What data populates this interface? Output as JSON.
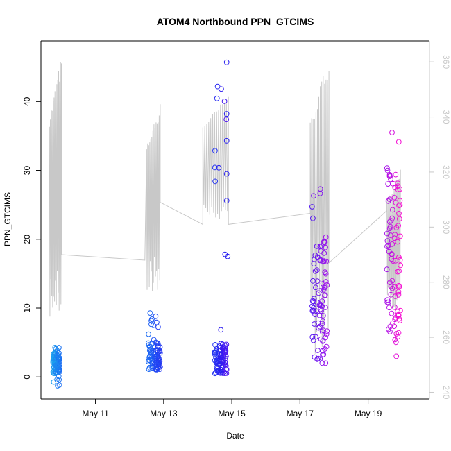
{
  "chart_data": {
    "type": "scatter",
    "title": "ATOM4 Northbound PPN_GTCIMS",
    "xlabel": "Date",
    "ylabel": "PPN_GTCIMS",
    "y2label": "",
    "xlim": [
      9.4,
      20.8
    ],
    "ylim": [
      -3.2,
      48.8
    ],
    "y2lim": [
      237.6,
      367.6
    ],
    "x_ticks": [
      {
        "value": 11,
        "label": "May 11"
      },
      {
        "value": 13,
        "label": "May 13"
      },
      {
        "value": 15,
        "label": "May 15"
      },
      {
        "value": 17,
        "label": "May 17"
      },
      {
        "value": 19,
        "label": "May 19"
      }
    ],
    "y_ticks": [
      0,
      10,
      20,
      30,
      40
    ],
    "y2_ticks": [
      240,
      260,
      280,
      300,
      320,
      340,
      360
    ],
    "colors": {
      "axis": "#000000",
      "right_axis": "#c8c8c8",
      "line": "#c8c8c8"
    },
    "series": [
      {
        "axis": "left",
        "marker": "open-circle",
        "color_by_time": [
          "#1aa3ee",
          "#1d5ff4",
          "#2a1af0",
          "#8f14ef",
          "#ff10d0"
        ],
        "clusters": [
          {
            "x_range": [
              9.75,
              9.95
            ],
            "y_stats": {
              "min": -1.5,
              "typical": [
                0.5,
                3.5
              ],
              "max": 4.3
            }
          },
          {
            "x_range": [
              12.55,
              12.9
            ],
            "y_stats": {
              "min": 0.4,
              "typical": [
                1.0,
                5.5
              ],
              "max": 9.3
            }
          },
          {
            "x_range": [
              14.5,
              14.85
            ],
            "y_stats": {
              "min": -0.2,
              "typical": [
                0.5,
                5.0
              ],
              "max": 45.7
            }
          },
          {
            "x_range": [
              17.35,
              17.8
            ],
            "y_stats": {
              "min": 0.6,
              "typical": [
                2.0,
                20.0
              ],
              "max": 27.3
            }
          },
          {
            "x_range": [
              19.55,
              19.95
            ],
            "y_stats": {
              "min": 2.2,
              "typical": [
                5.0,
                30.0
              ],
              "max": 35.5
            }
          }
        ],
        "highlights": [
          {
            "x": 14.85,
            "y": 45.7
          },
          {
            "x": 14.85,
            "y": 38.2
          },
          {
            "x": 14.85,
            "y": 34.3
          },
          {
            "x": 14.85,
            "y": 29.5
          },
          {
            "x": 14.85,
            "y": 25.6
          },
          {
            "x": 14.8,
            "y": 17.8
          },
          {
            "x": 14.88,
            "y": 17.5
          },
          {
            "x": 17.6,
            "y": 27.3
          },
          {
            "x": 17.4,
            "y": 26.3
          },
          {
            "x": 19.7,
            "y": 35.5
          }
        ]
      },
      {
        "axis": "right",
        "marker": "line",
        "color": "#c8c8c8",
        "segments": [
          {
            "x_range": [
              9.65,
              10.0
            ],
            "y_range": [
              266,
              362
            ],
            "flat_after": 290
          },
          {
            "x_range": [
              12.5,
              12.9
            ],
            "y_range": [
              276,
              345
            ],
            "flat_after": 309
          },
          {
            "x_range": [
              14.15,
              14.9
            ],
            "y_range": [
              300,
              348
            ],
            "flat_after": 301
          },
          {
            "x_range": [
              17.3,
              17.85
            ],
            "y_range": [
              254,
              363
            ],
            "flat_after": 287
          },
          {
            "x_range": [
              19.55,
              19.95
            ],
            "y_range": [
              270,
              322
            ],
            "flat_after": 306
          }
        ],
        "flats": [
          {
            "x": [
              10.0,
              12.45
            ],
            "y": [
              290,
              288
            ]
          },
          {
            "x": [
              12.9,
              14.15
            ],
            "y": [
              309,
              301
            ]
          },
          {
            "x": [
              14.9,
              17.3
            ],
            "y": [
              301,
              305
            ]
          },
          {
            "x": [
              17.85,
              19.55
            ],
            "y": [
              287,
              306
            ]
          }
        ]
      }
    ]
  }
}
